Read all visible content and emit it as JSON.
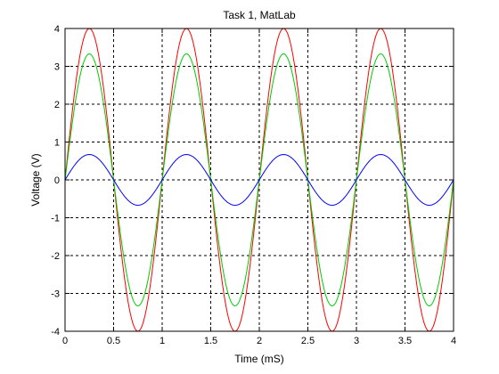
{
  "chart_data": {
    "type": "line",
    "title": "Task 1, MatLab",
    "xlabel": "Time (mS)",
    "ylabel": "Voltage (V)",
    "xlim": [
      0,
      4
    ],
    "ylim": [
      -4,
      4
    ],
    "xticks": [
      0,
      0.5,
      1,
      1.5,
      2,
      2.5,
      3,
      3.5,
      4
    ],
    "xtick_labels": [
      "0",
      "0.5",
      "1",
      "1.5",
      "2",
      "2.5",
      "3",
      "3.5",
      "4"
    ],
    "yticks": [
      -4,
      -3,
      -2,
      -1,
      0,
      1,
      2,
      3,
      4
    ],
    "ytick_labels": [
      "-4",
      "-3",
      "-2",
      "-1",
      "0",
      "1",
      "2",
      "3",
      "4"
    ],
    "grid": true,
    "grid_style": "dotted",
    "series": [
      {
        "color": "#ff0000",
        "waveform": "sine",
        "amplitude": 4.0,
        "frequency_khz": 1,
        "phase_deg": 0
      },
      {
        "color": "#00cc00",
        "waveform": "sine",
        "amplitude": 3.33,
        "frequency_khz": 1,
        "phase_deg": 0
      },
      {
        "color": "#0000ff",
        "waveform": "sine",
        "amplitude": 0.67,
        "frequency_khz": 1,
        "phase_deg": 0
      }
    ]
  }
}
